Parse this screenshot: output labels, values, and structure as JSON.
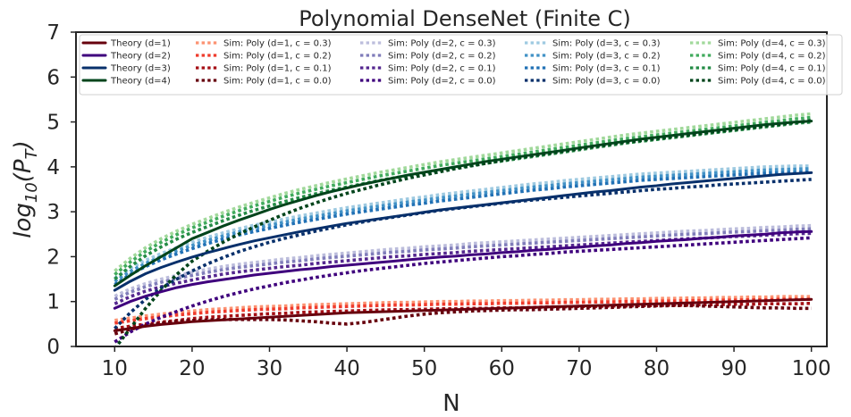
{
  "chart_data": {
    "type": "line",
    "title": "Polynomial DenseNet (Finite C)",
    "xlabel": "N",
    "ylabel_main": "log",
    "ylabel_sub": "10",
    "ylabel_tail": "(P",
    "ylabel_tail_sub": "T",
    "ylabel_close": ")",
    "xlim": [
      5,
      102
    ],
    "ylim": [
      0,
      7
    ],
    "xticks": [
      10,
      20,
      30,
      40,
      50,
      60,
      70,
      80,
      90,
      100
    ],
    "yticks": [
      0,
      1,
      2,
      3,
      4,
      5,
      6,
      7
    ],
    "grid": false,
    "legend_placement": "top",
    "x": [
      10,
      12,
      14,
      16,
      18,
      20,
      22,
      24,
      26,
      28,
      30,
      32,
      34,
      36,
      38,
      40,
      42,
      44,
      46,
      48,
      50,
      52,
      54,
      56,
      58,
      60,
      62,
      64,
      66,
      68,
      70,
      72,
      74,
      76,
      78,
      80,
      82,
      84,
      86,
      88,
      90,
      92,
      94,
      96,
      98,
      100
    ],
    "series": [
      {
        "name": "Theory (d=1)",
        "color": "#67000d",
        "style": "solid",
        "theory": true,
        "d": 1,
        "values": [
          0.35,
          0.4,
          0.45,
          0.49,
          0.52,
          0.55,
          0.57,
          0.59,
          0.61,
          0.63,
          0.65,
          0.67,
          0.69,
          0.71,
          0.73,
          0.75,
          0.76,
          0.77,
          0.78,
          0.79,
          0.8,
          0.81,
          0.82,
          0.83,
          0.84,
          0.85,
          0.86,
          0.87,
          0.88,
          0.89,
          0.9,
          0.91,
          0.92,
          0.93,
          0.94,
          0.95,
          0.96,
          0.97,
          0.98,
          0.99,
          1.0,
          1.01,
          1.02,
          1.03,
          1.04,
          1.05
        ]
      },
      {
        "name": "Theory (d=2)",
        "color": "#3f007d",
        "style": "solid",
        "theory": true,
        "d": 2,
        "values": [
          0.85,
          1.0,
          1.12,
          1.22,
          1.31,
          1.38,
          1.44,
          1.49,
          1.54,
          1.59,
          1.63,
          1.67,
          1.71,
          1.74,
          1.78,
          1.81,
          1.84,
          1.87,
          1.9,
          1.93,
          1.96,
          1.99,
          2.01,
          2.04,
          2.06,
          2.09,
          2.11,
          2.14,
          2.16,
          2.19,
          2.21,
          2.24,
          2.26,
          2.29,
          2.31,
          2.34,
          2.36,
          2.38,
          2.41,
          2.43,
          2.46,
          2.48,
          2.5,
          2.53,
          2.55,
          2.56
        ]
      },
      {
        "name": "Theory (d=3)",
        "color": "#08306b",
        "style": "solid",
        "theory": true,
        "d": 3,
        "values": [
          1.25,
          1.45,
          1.62,
          1.76,
          1.88,
          1.99,
          2.09,
          2.18,
          2.27,
          2.35,
          2.42,
          2.49,
          2.56,
          2.62,
          2.68,
          2.74,
          2.79,
          2.84,
          2.89,
          2.94,
          2.99,
          3.04,
          3.08,
          3.12,
          3.16,
          3.2,
          3.24,
          3.28,
          3.32,
          3.36,
          3.4,
          3.44,
          3.47,
          3.51,
          3.55,
          3.58,
          3.62,
          3.65,
          3.68,
          3.71,
          3.74,
          3.77,
          3.8,
          3.83,
          3.85,
          3.87
        ]
      },
      {
        "name": "Theory (d=4)",
        "color": "#00441b",
        "style": "solid",
        "theory": true,
        "d": 4,
        "values": [
          1.35,
          1.58,
          1.8,
          2.0,
          2.2,
          2.4,
          2.54,
          2.68,
          2.81,
          2.93,
          3.05,
          3.16,
          3.26,
          3.36,
          3.45,
          3.53,
          3.61,
          3.68,
          3.75,
          3.82,
          3.88,
          3.94,
          4.0,
          4.06,
          4.12,
          4.17,
          4.22,
          4.27,
          4.32,
          4.37,
          4.42,
          4.47,
          4.52,
          4.57,
          4.62,
          4.66,
          4.7,
          4.74,
          4.78,
          4.82,
          4.86,
          4.9,
          4.94,
          4.97,
          5.0,
          5.02
        ]
      },
      {
        "name": "Sim: Poly (d=1, c = 0.3)",
        "color": "#fc9272",
        "style": "dotted",
        "d": 1,
        "values": [
          0.58,
          0.63,
          0.68,
          0.72,
          0.76,
          0.79,
          0.82,
          0.84,
          0.86,
          0.88,
          0.89,
          0.9,
          0.92,
          0.93,
          0.94,
          0.95,
          0.96,
          0.97,
          0.98,
          0.98,
          0.99,
          1.0,
          1.0,
          1.01,
          1.01,
          1.02,
          1.02,
          1.03,
          1.03,
          1.04,
          1.04,
          1.05,
          1.05,
          1.06,
          1.06,
          1.07,
          1.07,
          1.08,
          1.08,
          1.09,
          1.09,
          1.1,
          1.1,
          1.11,
          1.11,
          1.11
        ]
      },
      {
        "name": "Sim: Poly (d=1, c = 0.2)",
        "color": "#ef3b2c",
        "style": "dotted",
        "d": 1,
        "values": [
          0.52,
          0.57,
          0.62,
          0.66,
          0.7,
          0.73,
          0.76,
          0.78,
          0.8,
          0.82,
          0.83,
          0.84,
          0.86,
          0.87,
          0.88,
          0.89,
          0.9,
          0.91,
          0.92,
          0.92,
          0.93,
          0.94,
          0.94,
          0.95,
          0.95,
          0.96,
          0.96,
          0.97,
          0.97,
          0.98,
          0.98,
          0.99,
          0.99,
          1.0,
          1.0,
          1.01,
          1.01,
          1.02,
          1.02,
          1.03,
          1.03,
          1.04,
          1.04,
          1.05,
          1.05,
          1.05
        ]
      },
      {
        "name": "Sim: Poly (d=1, c = 0.1)",
        "color": "#a50f15",
        "style": "dotted",
        "d": 1,
        "values": [
          0.4,
          0.45,
          0.5,
          0.54,
          0.58,
          0.62,
          0.65,
          0.67,
          0.69,
          0.71,
          0.73,
          0.74,
          0.76,
          0.77,
          0.78,
          0.79,
          0.8,
          0.81,
          0.82,
          0.82,
          0.83,
          0.84,
          0.84,
          0.85,
          0.85,
          0.86,
          0.86,
          0.87,
          0.88,
          0.88,
          0.89,
          0.89,
          0.9,
          0.9,
          0.91,
          0.91,
          0.92,
          0.92,
          0.93,
          0.93,
          0.94,
          0.94,
          0.95,
          0.95,
          0.95,
          0.96
        ]
      },
      {
        "name": "Sim: Poly (d=1, c = 0.0)",
        "color": "#67000d",
        "style": "dotted",
        "d": 1,
        "values": [
          0.28,
          0.38,
          0.46,
          0.52,
          0.56,
          0.58,
          0.59,
          0.6,
          0.6,
          0.6,
          0.6,
          0.59,
          0.57,
          0.55,
          0.52,
          0.5,
          0.53,
          0.58,
          0.63,
          0.68,
          0.72,
          0.75,
          0.77,
          0.79,
          0.8,
          0.81,
          0.82,
          0.82,
          0.83,
          0.84,
          0.85,
          0.86,
          0.87,
          0.88,
          0.89,
          0.9,
          0.91,
          0.91,
          0.9,
          0.89,
          0.88,
          0.87,
          0.86,
          0.86,
          0.85,
          0.85
        ]
      },
      {
        "name": "Sim: Poly (d=2, c = 0.3)",
        "color": "#bcbddc",
        "style": "dotted",
        "d": 2,
        "values": [
          1.12,
          1.28,
          1.4,
          1.5,
          1.58,
          1.65,
          1.72,
          1.78,
          1.83,
          1.87,
          1.91,
          1.95,
          1.98,
          2.02,
          2.05,
          2.08,
          2.11,
          2.14,
          2.17,
          2.19,
          2.22,
          2.24,
          2.26,
          2.29,
          2.31,
          2.33,
          2.35,
          2.37,
          2.39,
          2.41,
          2.43,
          2.45,
          2.47,
          2.49,
          2.51,
          2.53,
          2.55,
          2.57,
          2.58,
          2.6,
          2.62,
          2.63,
          2.65,
          2.66,
          2.68,
          2.69
        ]
      },
      {
        "name": "Sim: Poly (d=2, c = 0.2)",
        "color": "#807dba",
        "style": "dotted",
        "d": 2,
        "values": [
          1.05,
          1.21,
          1.33,
          1.43,
          1.51,
          1.58,
          1.65,
          1.71,
          1.76,
          1.8,
          1.84,
          1.88,
          1.91,
          1.95,
          1.98,
          2.01,
          2.04,
          2.07,
          2.1,
          2.12,
          2.15,
          2.17,
          2.19,
          2.22,
          2.24,
          2.26,
          2.28,
          2.3,
          2.32,
          2.34,
          2.36,
          2.38,
          2.4,
          2.42,
          2.44,
          2.46,
          2.48,
          2.5,
          2.51,
          2.53,
          2.55,
          2.56,
          2.58,
          2.59,
          2.61,
          2.62
        ]
      },
      {
        "name": "Sim: Poly (d=2, c = 0.1)",
        "color": "#54278f",
        "style": "dotted",
        "d": 2,
        "values": [
          0.95,
          1.11,
          1.23,
          1.33,
          1.41,
          1.48,
          1.55,
          1.61,
          1.66,
          1.7,
          1.74,
          1.78,
          1.81,
          1.85,
          1.88,
          1.91,
          1.94,
          1.97,
          2.0,
          2.02,
          2.05,
          2.07,
          2.09,
          2.12,
          2.14,
          2.16,
          2.18,
          2.2,
          2.22,
          2.24,
          2.26,
          2.28,
          2.3,
          2.32,
          2.34,
          2.36,
          2.38,
          2.4,
          2.41,
          2.43,
          2.45,
          2.46,
          2.48,
          2.49,
          2.51,
          2.52
        ]
      },
      {
        "name": "Sim: Poly (d=2, c = 0.0)",
        "color": "#3f007d",
        "style": "dotted",
        "d": 2,
        "values": [
          0.1,
          0.32,
          0.5,
          0.65,
          0.78,
          0.9,
          1.01,
          1.11,
          1.2,
          1.28,
          1.35,
          1.42,
          1.48,
          1.54,
          1.59,
          1.64,
          1.69,
          1.73,
          1.77,
          1.81,
          1.85,
          1.88,
          1.91,
          1.94,
          1.97,
          2.0,
          2.02,
          2.05,
          2.07,
          2.1,
          2.12,
          2.14,
          2.16,
          2.18,
          2.2,
          2.22,
          2.24,
          2.26,
          2.28,
          2.3,
          2.32,
          2.34,
          2.36,
          2.38,
          2.4,
          2.42
        ]
      },
      {
        "name": "Sim: Poly (d=3, c = 0.3)",
        "color": "#9ecae1",
        "style": "dotted",
        "d": 3,
        "values": [
          1.52,
          1.74,
          1.92,
          2.07,
          2.2,
          2.32,
          2.43,
          2.53,
          2.62,
          2.7,
          2.77,
          2.84,
          2.91,
          2.97,
          3.03,
          3.09,
          3.14,
          3.19,
          3.24,
          3.29,
          3.33,
          3.38,
          3.42,
          3.46,
          3.5,
          3.54,
          3.58,
          3.62,
          3.65,
          3.69,
          3.72,
          3.75,
          3.78,
          3.81,
          3.84,
          3.86,
          3.88,
          3.9,
          3.92,
          3.94,
          3.96,
          3.98,
          4.0,
          4.01,
          4.02,
          4.02
        ]
      },
      {
        "name": "Sim: Poly (d=3, c = 0.2)",
        "color": "#4292c6",
        "style": "dotted",
        "d": 3,
        "values": [
          1.45,
          1.67,
          1.85,
          2.0,
          2.13,
          2.25,
          2.36,
          2.46,
          2.55,
          2.63,
          2.7,
          2.77,
          2.84,
          2.9,
          2.96,
          3.02,
          3.07,
          3.12,
          3.17,
          3.22,
          3.26,
          3.31,
          3.35,
          3.39,
          3.43,
          3.47,
          3.51,
          3.55,
          3.58,
          3.62,
          3.65,
          3.68,
          3.71,
          3.74,
          3.77,
          3.79,
          3.81,
          3.83,
          3.85,
          3.87,
          3.89,
          3.91,
          3.93,
          3.94,
          3.95,
          3.96
        ]
      },
      {
        "name": "Sim: Poly (d=3, c = 0.1)",
        "color": "#2171b5",
        "style": "dotted",
        "d": 3,
        "values": [
          1.38,
          1.6,
          1.78,
          1.93,
          2.06,
          2.18,
          2.29,
          2.39,
          2.48,
          2.56,
          2.63,
          2.7,
          2.77,
          2.83,
          2.89,
          2.95,
          3.0,
          3.05,
          3.1,
          3.15,
          3.19,
          3.24,
          3.28,
          3.32,
          3.36,
          3.4,
          3.44,
          3.48,
          3.51,
          3.55,
          3.58,
          3.61,
          3.64,
          3.67,
          3.7,
          3.72,
          3.74,
          3.76,
          3.78,
          3.8,
          3.82,
          3.84,
          3.86,
          3.87,
          3.88,
          3.89
        ]
      },
      {
        "name": "Sim: Poly (d=3, c = 0.0)",
        "color": "#08306b",
        "style": "dotted",
        "d": 3,
        "values": [
          0.4,
          0.75,
          1.05,
          1.3,
          1.5,
          1.68,
          1.84,
          1.98,
          2.11,
          2.22,
          2.32,
          2.41,
          2.49,
          2.57,
          2.64,
          2.71,
          2.77,
          2.83,
          2.88,
          2.93,
          2.98,
          3.03,
          3.07,
          3.11,
          3.15,
          3.19,
          3.23,
          3.26,
          3.29,
          3.32,
          3.35,
          3.38,
          3.41,
          3.44,
          3.47,
          3.5,
          3.52,
          3.55,
          3.57,
          3.6,
          3.62,
          3.64,
          3.66,
          3.68,
          3.7,
          3.72
        ]
      },
      {
        "name": "Sim: Poly (d=4, c = 0.3)",
        "color": "#a1d99b",
        "style": "dotted",
        "d": 4,
        "values": [
          1.68,
          1.96,
          2.2,
          2.4,
          2.57,
          2.72,
          2.85,
          2.98,
          3.1,
          3.21,
          3.31,
          3.41,
          3.5,
          3.58,
          3.66,
          3.73,
          3.8,
          3.87,
          3.93,
          3.99,
          4.05,
          4.11,
          4.16,
          4.21,
          4.26,
          4.31,
          4.36,
          4.41,
          4.46,
          4.51,
          4.56,
          4.61,
          4.66,
          4.71,
          4.75,
          4.79,
          4.83,
          4.87,
          4.91,
          4.95,
          4.99,
          5.03,
          5.07,
          5.11,
          5.15,
          5.18
        ]
      },
      {
        "name": "Sim: Poly (d=4, c = 0.2)",
        "color": "#41ab5d",
        "style": "dotted",
        "d": 4,
        "values": [
          1.6,
          1.88,
          2.12,
          2.32,
          2.49,
          2.64,
          2.77,
          2.9,
          3.02,
          3.13,
          3.23,
          3.33,
          3.42,
          3.5,
          3.58,
          3.65,
          3.72,
          3.79,
          3.85,
          3.91,
          3.97,
          4.03,
          4.08,
          4.13,
          4.18,
          4.23,
          4.28,
          4.33,
          4.38,
          4.43,
          4.48,
          4.53,
          4.58,
          4.63,
          4.67,
          4.71,
          4.75,
          4.79,
          4.83,
          4.87,
          4.91,
          4.95,
          4.99,
          5.03,
          5.07,
          5.1
        ]
      },
      {
        "name": "Sim: Poly (d=4, c = 0.1)",
        "color": "#238b45",
        "style": "dotted",
        "d": 4,
        "values": [
          1.5,
          1.78,
          2.02,
          2.22,
          2.39,
          2.54,
          2.67,
          2.8,
          2.92,
          3.03,
          3.13,
          3.23,
          3.32,
          3.4,
          3.48,
          3.55,
          3.62,
          3.69,
          3.75,
          3.81,
          3.87,
          3.93,
          3.98,
          4.03,
          4.08,
          4.13,
          4.18,
          4.23,
          4.28,
          4.33,
          4.38,
          4.43,
          4.48,
          4.53,
          4.57,
          4.61,
          4.65,
          4.69,
          4.73,
          4.77,
          4.81,
          4.85,
          4.89,
          4.93,
          4.97,
          5.0
        ]
      },
      {
        "name": "Sim: Poly (d=4, c = 0.0)",
        "color": "#00441b",
        "style": "dotted",
        "d": 4,
        "values": [
          -0.05,
          0.4,
          0.85,
          1.25,
          1.6,
          1.9,
          2.12,
          2.32,
          2.5,
          2.66,
          2.81,
          2.95,
          3.08,
          3.2,
          3.31,
          3.41,
          3.5,
          3.59,
          3.67,
          3.75,
          3.82,
          3.89,
          3.96,
          4.02,
          4.08,
          4.14,
          4.2,
          4.25,
          4.3,
          4.35,
          4.4,
          4.45,
          4.5,
          4.55,
          4.59,
          4.63,
          4.67,
          4.71,
          4.75,
          4.79,
          4.83,
          4.87,
          4.91,
          4.95,
          4.99,
          5.03
        ]
      }
    ],
    "legend_columns": [
      [
        "Theory (d=1)",
        "Theory (d=2)",
        "Theory (d=3)",
        "Theory (d=4)"
      ],
      [
        "Sim: Poly (d=1, c = 0.3)",
        "Sim: Poly (d=1, c = 0.2)",
        "Sim: Poly (d=1, c = 0.1)",
        "Sim: Poly (d=1, c = 0.0)"
      ],
      [
        "Sim: Poly (d=2, c = 0.3)",
        "Sim: Poly (d=2, c = 0.2)",
        "Sim: Poly (d=2, c = 0.1)",
        "Sim: Poly (d=2, c = 0.0)"
      ],
      [
        "Sim: Poly (d=3, c = 0.3)",
        "Sim: Poly (d=3, c = 0.2)",
        "Sim: Poly (d=3, c = 0.1)",
        "Sim: Poly (d=3, c = 0.0)"
      ],
      [
        "Sim: Poly (d=4, c = 0.3)",
        "Sim: Poly (d=4, c = 0.2)",
        "Sim: Poly (d=4, c = 0.1)",
        "Sim: Poly (d=4, c = 0.0)"
      ]
    ]
  }
}
